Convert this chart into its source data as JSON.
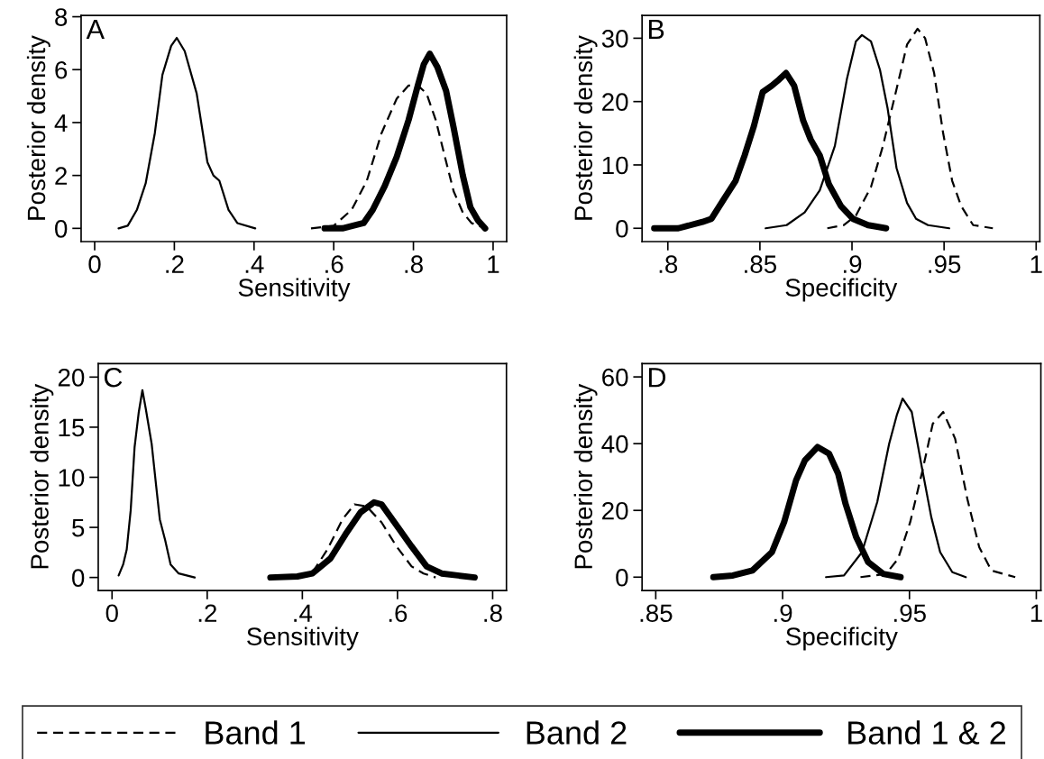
{
  "chart_data": [
    {
      "type": "line",
      "title": "A",
      "xlabel": "Sensitivity",
      "ylabel": "Posterior density",
      "legend": "bottom",
      "grid": false,
      "xlim": [
        -0.034,
        1.034
      ],
      "ylim": [
        -0.5,
        8.05
      ],
      "xticks": [
        0,
        {
          "value": 0.2,
          "label": ".2"
        },
        {
          "value": 0.4,
          "label": ".4"
        },
        {
          "value": 0.6,
          "label": ".6"
        },
        {
          "value": 0.8,
          "label": ".8"
        },
        1
      ],
      "yticks": [
        0,
        2,
        4,
        6,
        8
      ],
      "series": [
        {
          "name": "Band 1",
          "color": "#000000",
          "line_style": "dashed",
          "x": [
            0.543,
            0.6,
            0.645,
            0.683,
            0.72,
            0.758,
            0.788,
            0.811,
            0.833,
            0.856,
            0.879,
            0.901,
            0.924,
            0.946,
            0.98
          ],
          "values": [
            0,
            0.1,
            0.7,
            1.8,
            3.6,
            4.9,
            5.4,
            5.4,
            5.1,
            4.1,
            2.7,
            1.4,
            0.6,
            0.2,
            0
          ]
        },
        {
          "name": "Band 2",
          "color": "#000000",
          "line_style": "solid",
          "x": [
            0.06,
            0.083,
            0.106,
            0.128,
            0.151,
            0.17,
            0.192,
            0.206,
            0.226,
            0.256,
            0.283,
            0.298,
            0.313,
            0.336,
            0.358,
            0.403
          ],
          "values": [
            0,
            0.1,
            0.7,
            1.7,
            3.6,
            5.8,
            6.9,
            7.2,
            6.7,
            5.1,
            2.5,
            2.0,
            1.8,
            0.7,
            0.2,
            0
          ]
        },
        {
          "name": "Band 1 & 2",
          "color": "#000000",
          "line_style": "solid",
          "x": [
            0.577,
            0.622,
            0.675,
            0.698,
            0.728,
            0.758,
            0.788,
            0.811,
            0.826,
            0.841,
            0.86,
            0.882,
            0.901,
            0.924,
            0.943,
            0.962,
            0.98
          ],
          "values": [
            0,
            0,
            0.2,
            0.7,
            1.6,
            2.7,
            4.1,
            5.4,
            6.2,
            6.6,
            6.1,
            5.2,
            3.8,
            2.0,
            0.8,
            0.3,
            0
          ]
        }
      ]
    },
    {
      "type": "line",
      "title": "B",
      "xlabel": "Specificity",
      "ylabel": "Posterior density",
      "grid": false,
      "xlim": [
        0.786,
        1.002
      ],
      "ylim": [
        -2.1,
        33.6
      ],
      "xticks": [
        {
          "value": 0.8,
          "label": ".8"
        },
        {
          "value": 0.85,
          "label": ".85"
        },
        {
          "value": 0.9,
          "label": ".9"
        },
        {
          "value": 0.95,
          "label": ".95"
        },
        1
      ],
      "yticks": [
        0,
        10,
        20,
        30
      ],
      "series": [
        {
          "color": "#000000",
          "line_style": "dashed",
          "x": [
            0.8866,
            0.8956,
            0.9021,
            0.9103,
            0.9168,
            0.9234,
            0.9299,
            0.9356,
            0.9397,
            0.9446,
            0.9495,
            0.9544,
            0.9593,
            0.9658,
            0.9765
          ],
          "values": [
            0,
            0.5,
            2,
            6.5,
            13,
            21,
            29,
            31.5,
            30,
            24.5,
            15,
            7.5,
            3.5,
            0.5,
            0
          ]
        },
        {
          "color": "#000000",
          "line_style": "solid",
          "x": [
            0.8531,
            0.8645,
            0.8743,
            0.8825,
            0.8907,
            0.8972,
            0.9021,
            0.9054,
            0.9103,
            0.9152,
            0.9193,
            0.9242,
            0.9299,
            0.9348,
            0.9413,
            0.9528
          ],
          "values": [
            0,
            0.5,
            2.5,
            6,
            13,
            23.5,
            29.5,
            30.5,
            29.5,
            25,
            19,
            9.5,
            4,
            1.5,
            0.5,
            0
          ]
        },
        {
          "color": "#000000",
          "line_style": "solid",
          "x": [
            0.7926,
            0.8057,
            0.8188,
            0.8237,
            0.8302,
            0.8368,
            0.8417,
            0.8466,
            0.8515,
            0.8564,
            0.8605,
            0.8642,
            0.8686,
            0.8735,
            0.8776,
            0.8825,
            0.8874,
            0.894,
            0.9005,
            0.9087,
            0.9185
          ],
          "values": [
            0,
            0,
            1,
            1.5,
            4.5,
            7.5,
            11.5,
            16,
            21.5,
            22.5,
            23.5,
            24.5,
            22.5,
            17,
            14,
            11.5,
            7,
            3.5,
            1.5,
            0.5,
            0
          ]
        }
      ]
    },
    {
      "type": "line",
      "title": "C",
      "xlabel": "Sensitivity",
      "ylabel": "Posterior density",
      "grid": false,
      "xlim": [
        -0.029,
        0.829
      ],
      "ylim": [
        -1.3,
        21.35
      ],
      "xticks": [
        0,
        {
          "value": 0.2,
          "label": ".2"
        },
        {
          "value": 0.4,
          "label": ".4"
        },
        {
          "value": 0.6,
          "label": ".6"
        },
        {
          "value": 0.8,
          "label": ".8"
        }
      ],
      "yticks": [
        0,
        5,
        10,
        15,
        20
      ],
      "series": [
        {
          "color": "#000000",
          "line_style": "dashed",
          "x": [
            0.3896,
            0.4212,
            0.4528,
            0.4844,
            0.5096,
            0.5349,
            0.5665,
            0.598,
            0.6296,
            0.6549,
            0.6801
          ],
          "values": [
            0,
            0.5,
            2.8,
            5.8,
            7.3,
            7.1,
            5.5,
            3.1,
            1.1,
            0.4,
            0
          ]
        },
        {
          "color": "#000000",
          "line_style": "solid",
          "x": [
            0.0139,
            0.0234,
            0.0309,
            0.0392,
            0.0474,
            0.0562,
            0.0638,
            0.0707,
            0.0834,
            0.0928,
            0.1004,
            0.1118,
            0.1231,
            0.1402,
            0.1737
          ],
          "values": [
            0.2,
            1.3,
            2.8,
            6.7,
            13,
            16.5,
            18.7,
            16.9,
            13.3,
            9.1,
            5.8,
            3.7,
            1.3,
            0.4,
            0
          ]
        },
        {
          "color": "#000000",
          "line_style": "solid",
          "x": [
            0.3328,
            0.3896,
            0.4212,
            0.4591,
            0.4907,
            0.5223,
            0.5507,
            0.5665,
            0.598,
            0.6296,
            0.6612,
            0.6928,
            0.7622
          ],
          "values": [
            0,
            0.1,
            0.4,
            1.9,
            4.3,
            6.5,
            7.5,
            7.3,
            5.2,
            3.1,
            1.1,
            0.4,
            0
          ]
        }
      ]
    },
    {
      "type": "line",
      "title": "D",
      "xlabel": "Specificity",
      "ylabel": "Posterior density",
      "grid": false,
      "xlim": [
        0.8446,
        1.0018
      ],
      "ylim": [
        -4,
        64
      ],
      "xticks": [
        {
          "value": 0.85,
          "label": ".85"
        },
        {
          "value": 0.9,
          "label": ".9"
        },
        {
          "value": 0.95,
          "label": ".95"
        },
        1
      ],
      "yticks": [
        0,
        20,
        40,
        60
      ],
      "series": [
        {
          "color": "#000000",
          "line_style": "dashed",
          "x": [
            0.9307,
            0.9361,
            0.9408,
            0.9455,
            0.9503,
            0.955,
            0.9592,
            0.9633,
            0.968,
            0.9728,
            0.9775,
            0.9823,
            0.9917
          ],
          "values": [
            0,
            0.5,
            1,
            5.5,
            16.5,
            31.5,
            46,
            49.5,
            41.5,
            23.5,
            9,
            2,
            0
          ]
        },
        {
          "color": "#000000",
          "line_style": "solid",
          "x": [
            0.9171,
            0.9242,
            0.9313,
            0.9373,
            0.942,
            0.945,
            0.9473,
            0.9509,
            0.955,
            0.9586,
            0.9621,
            0.9669,
            0.9722
          ],
          "values": [
            0,
            0.5,
            7.5,
            22.5,
            40,
            48.5,
            53.5,
            49.5,
            32.5,
            18,
            7.5,
            1.5,
            0
          ]
        },
        {
          "color": "#000000",
          "line_style": "solid",
          "x": [
            0.8727,
            0.8804,
            0.8881,
            0.8958,
            0.9006,
            0.9053,
            0.9088,
            0.9138,
            0.9183,
            0.9219,
            0.9248,
            0.929,
            0.9337,
            0.9396,
            0.9465
          ],
          "values": [
            0,
            0.5,
            2,
            7.5,
            16.5,
            29,
            35,
            39,
            37,
            31,
            22,
            12,
            4.5,
            1,
            0
          ]
        }
      ]
    }
  ]
}
